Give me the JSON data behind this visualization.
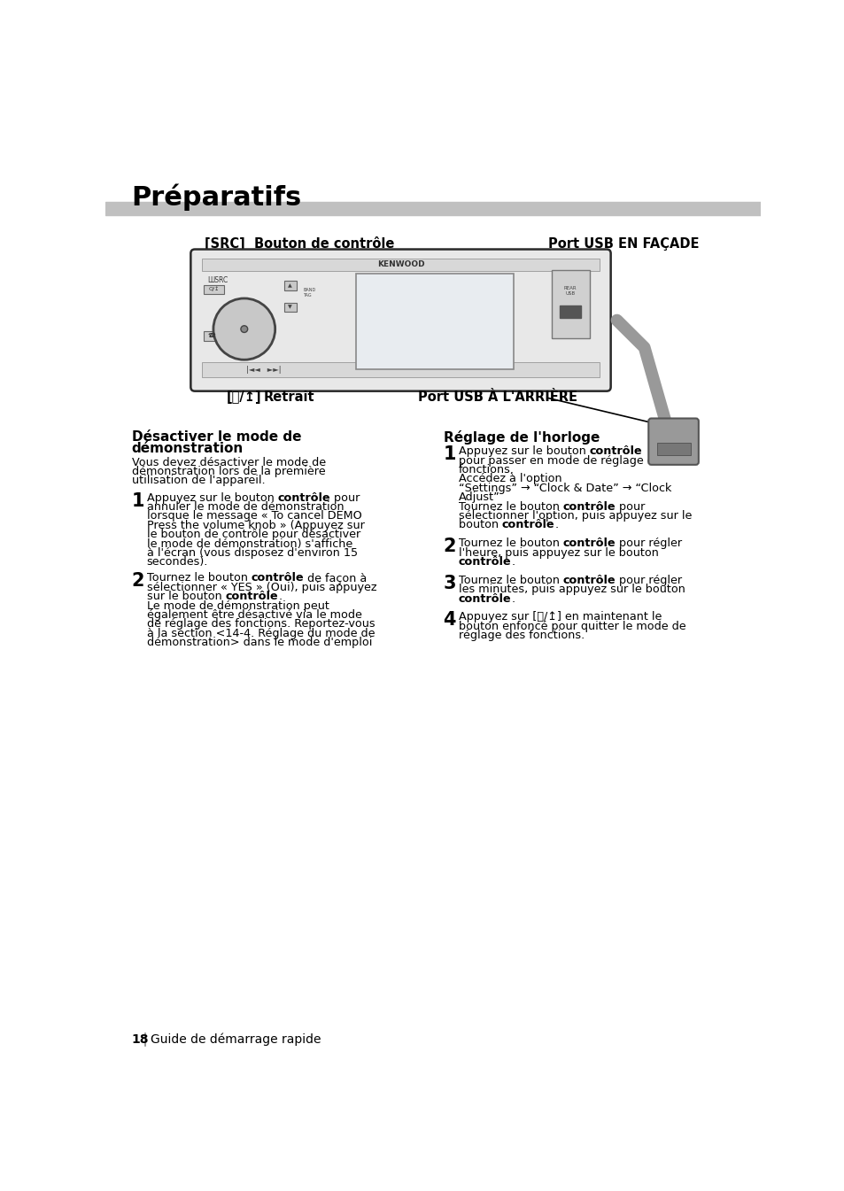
{
  "page_bg": "#ffffff",
  "title": "Préparatifs",
  "title_fontsize": 22,
  "title_color": "#000000",
  "title_bar_color": "#c0c0c0",
  "label_src": "[SRC]  Bouton de contrôle",
  "label_usb_facade": "Port USB EN FAÇADE",
  "label_retrait": "[⌕/↥]   Retrait",
  "label_usb_arriere": "Port USB À L'ARRIÈRE",
  "footer_num": "18",
  "footer_text": "Guide de démarrage rapide",
  "body_fontsize": 9.2,
  "section_title_fontsize": 11.0,
  "step_num_fontsize": 15,
  "label_fontsize": 10.5,
  "footer_fontsize": 10,
  "intro_fontsize": 9.2
}
